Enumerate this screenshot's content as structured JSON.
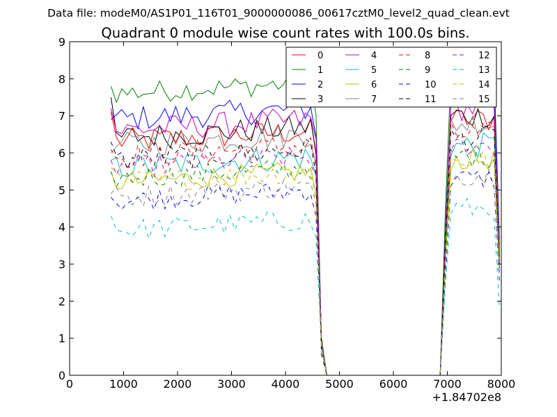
{
  "chart_data": {
    "type": "line",
    "suptitle": "Data file: modeM0/AS1P01_116T01_9000000086_00617cztM0_level2_quad_clean.evt",
    "title": "Quadrant 0 module wise count rates with 100.0s bins.",
    "xlabel": "",
    "ylabel": "",
    "x_offset_label": "+1.84702e8",
    "xlim": [
      0,
      8000
    ],
    "ylim": [
      0,
      9
    ],
    "xticks": [
      0,
      1000,
      2000,
      3000,
      4000,
      5000,
      6000,
      7000,
      8000
    ],
    "yticks": [
      0,
      1,
      2,
      3,
      4,
      5,
      6,
      7,
      8,
      9
    ],
    "grid": false,
    "legend_position": "top-right",
    "x_segments": [
      {
        "start": 767,
        "step": 100,
        "count": 38
      },
      {
        "start": 4567,
        "step": 100,
        "count": 1
      },
      {
        "start": 4667,
        "step": 100,
        "count": 1
      },
      {
        "start": 4767,
        "step": 100,
        "count": 21
      },
      {
        "start": 6867,
        "step": 100,
        "count": 1
      },
      {
        "start": 6967,
        "step": 100,
        "count": 1
      },
      {
        "start": 7067,
        "step": 100,
        "count": 9
      },
      {
        "start": 7967,
        "step": 100,
        "count": 1
      }
    ],
    "series": [
      {
        "name": "0",
        "color": "#ff0000",
        "dash": "solid",
        "level": 6.3,
        "start": 7.1,
        "amp": 0.35,
        "end": 3.2
      },
      {
        "name": "1",
        "color": "#008000",
        "dash": "solid",
        "level": 7.6,
        "start": 7.8,
        "amp": 0.3,
        "end": 3.5
      },
      {
        "name": "2",
        "color": "#0000ff",
        "dash": "solid",
        "level": 6.9,
        "start": 6.9,
        "amp": 0.35,
        "end": 3.7
      },
      {
        "name": "3",
        "color": "#000000",
        "dash": "solid",
        "level": 6.4,
        "start": 7.5,
        "amp": 0.35,
        "end": 3.0
      },
      {
        "name": "4",
        "color": "#bf00bf",
        "dash": "solid",
        "level": 6.6,
        "start": 7.2,
        "amp": 0.35,
        "end": 3.3
      },
      {
        "name": "5",
        "color": "#00bfbf",
        "dash": "solid",
        "level": 5.6,
        "start": 5.8,
        "amp": 0.35,
        "end": 3.0
      },
      {
        "name": "6",
        "color": "#bfbf00",
        "dash": "solid",
        "level": 5.2,
        "start": 5.5,
        "amp": 0.3,
        "end": 2.8
      },
      {
        "name": "7",
        "color": "#808080",
        "dash": "solid",
        "level": 6.2,
        "start": 6.0,
        "amp": 0.35,
        "end": 3.6
      },
      {
        "name": "8",
        "color": "#ff0000",
        "dash": "dashed",
        "level": 5.9,
        "start": 6.1,
        "amp": 0.35,
        "end": 3.0
      },
      {
        "name": "9",
        "color": "#008000",
        "dash": "dashed",
        "level": 5.3,
        "start": 5.5,
        "amp": 0.3,
        "end": 2.9
      },
      {
        "name": "10",
        "color": "#0000ff",
        "dash": "dashed",
        "level": 4.7,
        "start": 4.8,
        "amp": 0.3,
        "end": 2.5
      },
      {
        "name": "11",
        "color": "#000000",
        "dash": "dashed",
        "level": 5.8,
        "start": 6.3,
        "amp": 0.35,
        "end": 3.1
      },
      {
        "name": "12",
        "color": "#bf00bf",
        "dash": "dashed",
        "level": 5.6,
        "start": 5.8,
        "amp": 0.3,
        "end": 3.0
      },
      {
        "name": "13",
        "color": "#00bfbf",
        "dash": "dashed",
        "level": 3.9,
        "start": 4.3,
        "amp": 0.3,
        "end": 1.8
      },
      {
        "name": "14",
        "color": "#bfbf00",
        "dash": "dashed",
        "level": 5.2,
        "start": 5.6,
        "amp": 0.3,
        "end": 2.7
      },
      {
        "name": "15",
        "color": "#808080",
        "dash": "dashed",
        "level": 4.8,
        "start": 4.9,
        "amp": 0.3,
        "end": 2.6
      }
    ]
  }
}
